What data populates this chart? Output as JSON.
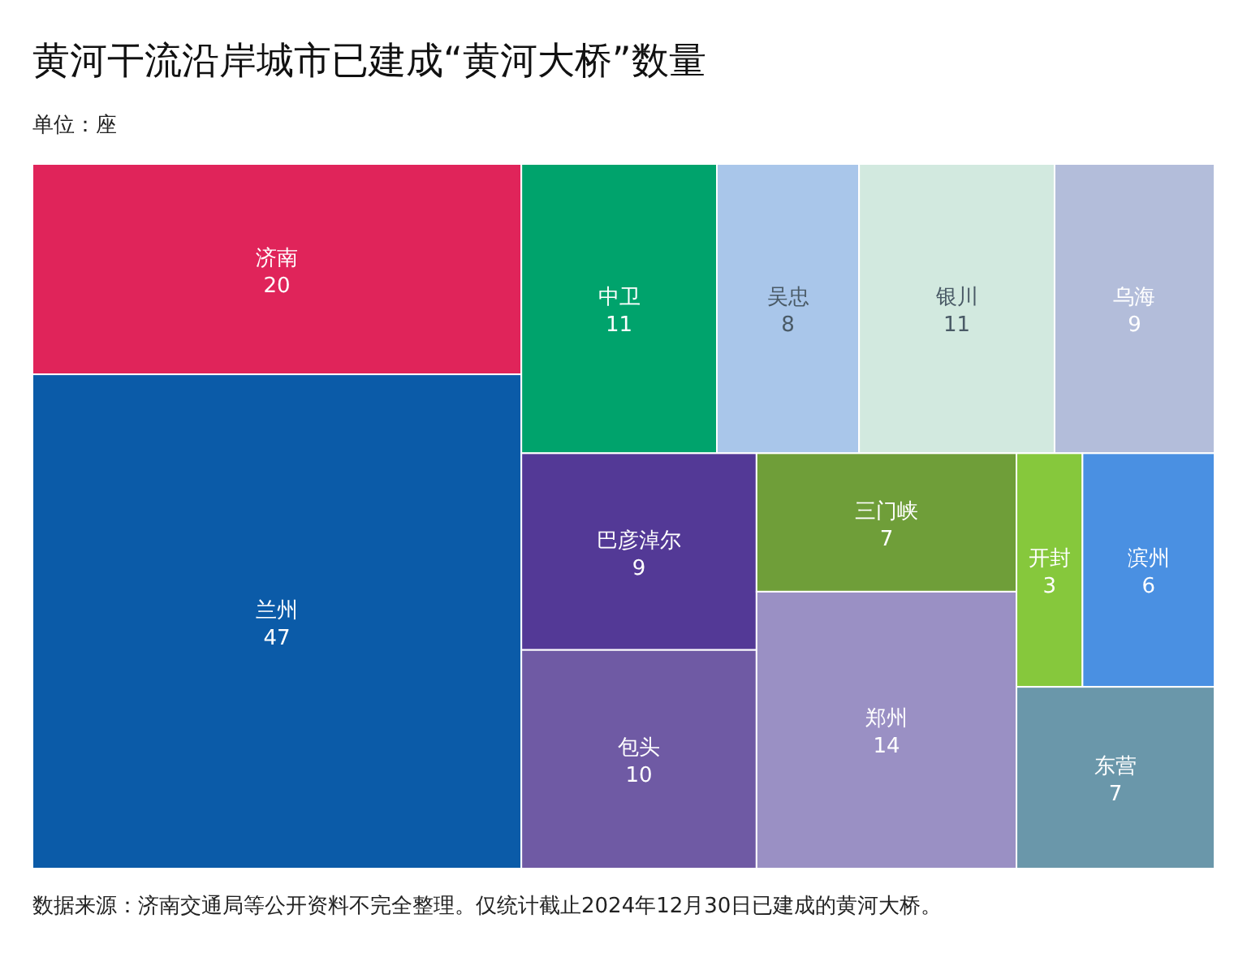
{
  "chart_data": {
    "type": "other",
    "title": "黄河干流沿岸城市已建成“黄河大桥”数量",
    "subtitle": "单位：座",
    "categories": [
      "济南",
      "兰州",
      "中卫",
      "吴忠",
      "银川",
      "乌海",
      "巴彦淖尔",
      "包头",
      "三门峡",
      "郑州",
      "开封",
      "滨州",
      "东营"
    ],
    "values": [
      20,
      47,
      11,
      8,
      11,
      9,
      9,
      10,
      7,
      14,
      3,
      6,
      7
    ],
    "colors": [
      "#e0245a",
      "#0b5ba8",
      "#00a36c",
      "#a9c6ea",
      "#d2e9df",
      "#b3bdda",
      "#533996",
      "#6f5aa4",
      "#6f9e39",
      "#9a90c4",
      "#86c83c",
      "#4a90e2",
      "#6a97aa"
    ],
    "data_labels": true,
    "annotations": [
      "数据来源：济南交通局等公开资料不完全整理。仅统计截止2024年12月30日已建成的黄河大桥。"
    ]
  }
}
